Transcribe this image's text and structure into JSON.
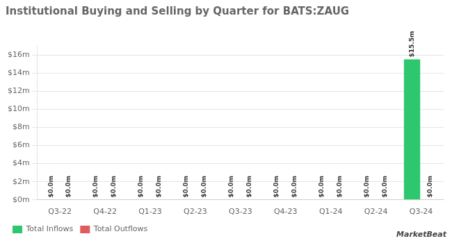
{
  "chart_data": {
    "type": "bar",
    "title": "Institutional Buying and Selling by Quarter for BATS:ZAUG",
    "categories": [
      "Q3-22",
      "Q4-22",
      "Q1-23",
      "Q2-23",
      "Q3-23",
      "Q4-23",
      "Q1-24",
      "Q2-24",
      "Q3-24"
    ],
    "series": [
      {
        "name": "Total Inflows",
        "color": "#2dc76d",
        "values": [
          0.0,
          0.0,
          0.0,
          0.0,
          0.0,
          0.0,
          0.0,
          0.0,
          15.5
        ],
        "value_labels": [
          "$0.0m",
          "$0.0m",
          "$0.0m",
          "$0.0m",
          "$0.0m",
          "$0.0m",
          "$0.0m",
          "$0.0m",
          "$15.5m"
        ]
      },
      {
        "name": "Total Outflows",
        "color": "#e05c5c",
        "values": [
          0.0,
          0.0,
          0.0,
          0.0,
          0.0,
          0.0,
          0.0,
          0.0,
          0.0
        ],
        "value_labels": [
          "$0.0m",
          "$0.0m",
          "$0.0m",
          "$0.0m",
          "$0.0m",
          "$0.0m",
          "$0.0m",
          "$0.0m",
          "$0.0m"
        ]
      }
    ],
    "ylim": [
      0,
      17
    ],
    "yticks": [
      {
        "value": 0,
        "label": "$0m"
      },
      {
        "value": 2,
        "label": "$2m"
      },
      {
        "value": 4,
        "label": "$4m"
      },
      {
        "value": 6,
        "label": "$6m"
      },
      {
        "value": 8,
        "label": "$8m"
      },
      {
        "value": 10,
        "label": "$10m"
      },
      {
        "value": 12,
        "label": "$12m"
      },
      {
        "value": 14,
        "label": "$14m"
      },
      {
        "value": 16,
        "label": "$16m"
      }
    ],
    "grid": true,
    "legend": "lower left",
    "data_labels": true,
    "annotations": [
      "MarketBeat"
    ]
  }
}
